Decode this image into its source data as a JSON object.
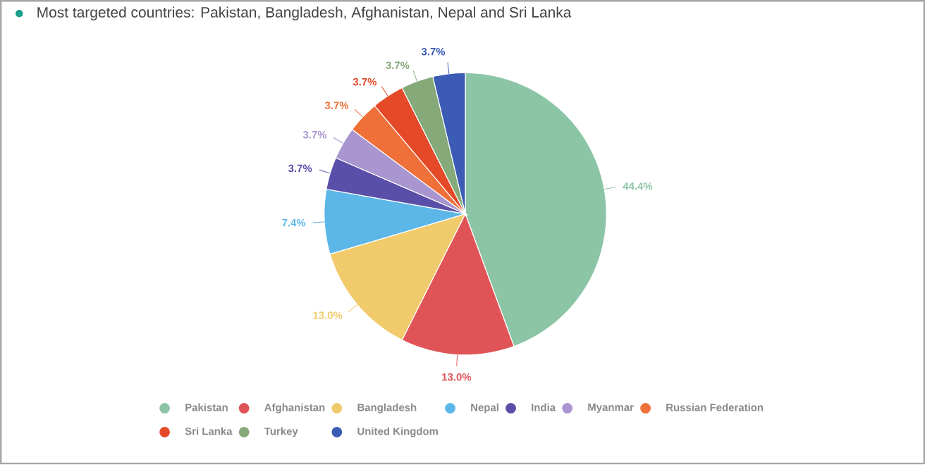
{
  "chart_data": {
    "type": "pie",
    "title": "Most targeted countries: Pakistan, Bangladesh, Afghanistan, Nepal and Sri Lanka",
    "categories": [
      "Pakistan",
      "Afghanistan",
      "Bangladesh",
      "Nepal",
      "India",
      "Myanmar",
      "Russian Federation",
      "Sri Lanka",
      "Turkey",
      "United Kingdom"
    ],
    "values": [
      44.4,
      13.0,
      13.0,
      7.4,
      3.7,
      3.7,
      3.7,
      3.7,
      3.7,
      3.7
    ],
    "value_labels": [
      "44.4%",
      "13.0%",
      "13.0%",
      "7.4%",
      "3.7%",
      "3.7%",
      "3.7%",
      "3.7%",
      "3.7%",
      "3.7%"
    ],
    "colors": [
      "#8cc5a6",
      "#e05458",
      "#f1cb6b",
      "#5cb7e8",
      "#5a4fa8",
      "#a995d0",
      "#f0703a",
      "#e44a27",
      "#86a97a",
      "#3b5bb5"
    ],
    "legend": "bottom"
  }
}
